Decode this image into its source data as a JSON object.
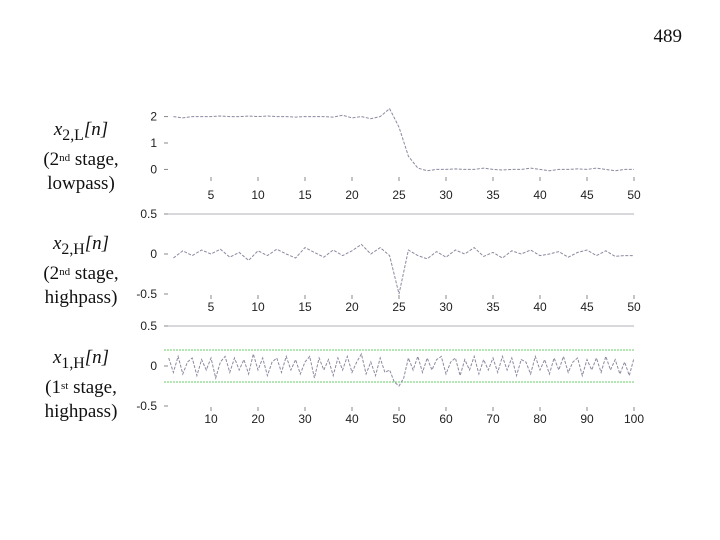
{
  "page_number": "489",
  "labels": [
    {
      "signal_base": "x",
      "signal_sub": "2,L",
      "signal_arg": "[n]",
      "line2_pre": "(2",
      "line2_sup": "nd",
      "line2_post": " stage,",
      "line3": "lowpass)"
    },
    {
      "signal_base": "x",
      "signal_sub": "2,H",
      "signal_arg": "[n]",
      "line2_pre": "(2",
      "line2_sup": "nd",
      "line2_post": " stage,",
      "line3": "highpass)"
    },
    {
      "signal_base": "x",
      "signal_sub": "1,H",
      "signal_arg": "[n]",
      "line2_pre": "(1",
      "line2_sup": "st",
      "line2_post": " stage,",
      "line3": "highpass)"
    }
  ],
  "chart_data": [
    {
      "type": "line",
      "xlim": [
        0,
        50
      ],
      "ylim": [
        -0.4,
        2.4
      ],
      "xticks": [
        5,
        10,
        15,
        20,
        25,
        30,
        35,
        40,
        45,
        50
      ],
      "yticks": [
        0,
        1,
        2
      ],
      "ytick_labels": [
        "0",
        "1",
        "2"
      ],
      "series": [
        {
          "color": "#8a8aa0",
          "values": [
            2.0,
            1.95,
            2.0,
            2.0,
            2.0,
            2.02,
            2.0,
            2.0,
            2.02,
            2.0,
            2.02,
            2.0,
            2.0,
            1.98,
            2.0,
            2.0,
            2.0,
            1.98,
            2.05,
            1.95,
            2.0,
            1.92,
            2.0,
            2.3,
            1.6,
            0.5,
            0.05,
            -0.05,
            0.0,
            0.0,
            0.02,
            0.0,
            0.0,
            0.05,
            0.0,
            -0.02,
            0.0,
            0.0,
            0.05,
            0.0,
            -0.05,
            0.0,
            0.0,
            0.02,
            0.0,
            0.05,
            0.0,
            -0.05,
            0.0,
            0.0
          ]
        }
      ]
    },
    {
      "type": "line",
      "xlim": [
        0,
        50
      ],
      "ylim": [
        -0.55,
        0.5
      ],
      "xticks": [
        5,
        10,
        15,
        20,
        25,
        30,
        35,
        40,
        45,
        50
      ],
      "yticks": [
        0.5,
        0,
        -0.5
      ],
      "ytick_labels": [
        "0.5",
        "0",
        "-0.5"
      ],
      "series": [
        {
          "color": "#8a8aa0",
          "values": [
            -0.05,
            0.04,
            -0.02,
            0.05,
            0.0,
            0.06,
            -0.04,
            0.02,
            -0.08,
            0.04,
            -0.02,
            0.06,
            0.0,
            -0.05,
            0.08,
            0.02,
            -0.04,
            0.05,
            -0.02,
            0.04,
            0.12,
            0.0,
            0.08,
            -0.02,
            -0.5,
            0.05,
            -0.02,
            -0.06,
            0.03,
            -0.04,
            0.05,
            0.0,
            0.08,
            -0.03,
            0.02,
            -0.05,
            0.04,
            0.0,
            0.05,
            -0.02,
            0.0,
            0.03,
            -0.04,
            0.02,
            0.05,
            -0.02,
            0.04,
            -0.03,
            -0.02,
            -0.02
          ]
        }
      ]
    },
    {
      "type": "line",
      "xlim": [
        0,
        100
      ],
      "ylim": [
        -0.55,
        0.5
      ],
      "xticks": [
        10,
        20,
        30,
        40,
        50,
        60,
        70,
        80,
        90,
        100
      ],
      "yticks": [
        0.5,
        0,
        -0.5
      ],
      "ytick_labels": [
        "0.5",
        "0",
        "-0.5"
      ],
      "threshold_lines": [
        0.2,
        -0.2
      ],
      "threshold_color": "#66cc66",
      "series": [
        {
          "color": "#8a8aa0",
          "values": [
            0.1,
            -0.08,
            0.12,
            -0.1,
            0.05,
            0.1,
            -0.12,
            0.08,
            -0.05,
            0.1,
            -0.15,
            0.05,
            0.12,
            -0.08,
            0.1,
            -0.05,
            0.08,
            -0.1,
            0.15,
            -0.05,
            0.1,
            -0.12,
            0.05,
            0.1,
            -0.08,
            0.12,
            -0.05,
            0.08,
            -0.1,
            0.05,
            0.12,
            -0.15,
            0.1,
            -0.05,
            0.08,
            -0.12,
            0.1,
            -0.05,
            0.12,
            -0.08,
            0.05,
            0.15,
            -0.1,
            0.05,
            -0.12,
            0.1,
            -0.08,
            -0.05,
            -0.2,
            -0.25,
            -0.15,
            0.1,
            -0.05,
            0.12,
            -0.08,
            0.1,
            -0.05,
            0.08,
            0.12,
            -0.1,
            0.05,
            0.1,
            -0.12,
            0.08,
            -0.05,
            0.12,
            -0.1,
            0.08,
            -0.05,
            0.1,
            -0.08,
            0.12,
            -0.05,
            0.1,
            -0.12,
            0.08,
            0.05,
            -0.1,
            0.12,
            -0.05,
            0.08,
            -0.1,
            0.1,
            -0.05,
            0.12,
            -0.08,
            0.05,
            0.1,
            -0.12,
            0.08,
            -0.05,
            0.1,
            -0.08,
            0.12,
            -0.05,
            0.08,
            -0.1,
            0.05,
            -0.12,
            0.1
          ]
        }
      ]
    }
  ]
}
